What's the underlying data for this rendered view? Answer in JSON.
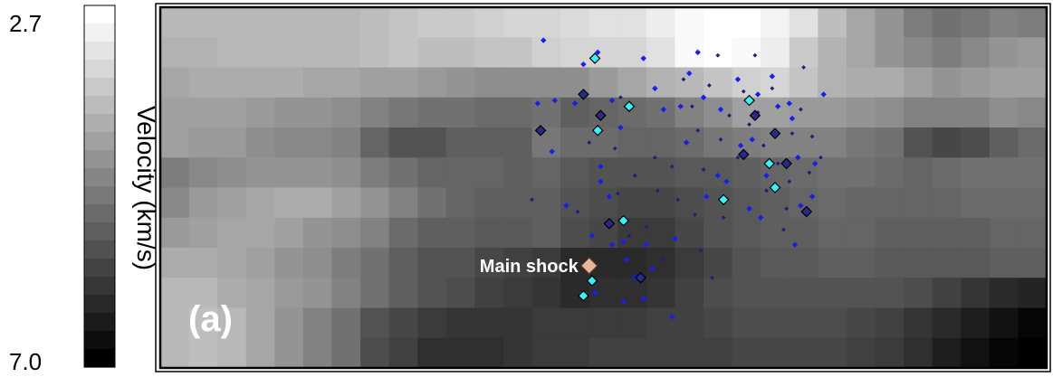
{
  "chart_data": {
    "type": "heatmap",
    "title": "",
    "colorbar": {
      "label": "Velocity (km/s)",
      "top_tick": "2.7",
      "bottom_tick": "7.0",
      "range": [
        2.7,
        7.0
      ],
      "steps": 20,
      "colormap": "white-to-black"
    },
    "panel_label": "(a)",
    "grid": {
      "rows": 12,
      "cols": 31,
      "values": [
        [
          3.9,
          3.9,
          3.9,
          3.9,
          3.9,
          3.9,
          3.9,
          3.8,
          3.7,
          3.6,
          3.6,
          3.5,
          3.4,
          3.4,
          3.3,
          3.2,
          3.2,
          3.0,
          2.8,
          2.7,
          2.7,
          2.9,
          3.2,
          3.8,
          4.2,
          4.5,
          4.9,
          5.1,
          5.0,
          4.8,
          4.9
        ],
        [
          4.0,
          4.0,
          3.9,
          3.9,
          3.9,
          3.9,
          3.9,
          3.8,
          3.7,
          3.8,
          3.8,
          3.7,
          3.7,
          3.5,
          3.4,
          3.4,
          3.4,
          3.2,
          2.8,
          2.7,
          2.8,
          3.0,
          3.6,
          4.0,
          4.2,
          4.5,
          4.7,
          4.9,
          4.7,
          4.5,
          4.4
        ],
        [
          4.2,
          4.1,
          4.1,
          4.1,
          4.1,
          4.2,
          4.2,
          4.3,
          4.3,
          4.4,
          4.5,
          4.6,
          4.6,
          4.6,
          4.6,
          4.4,
          4.2,
          4.0,
          3.9,
          3.7,
          3.5,
          3.4,
          3.7,
          4.0,
          4.1,
          4.1,
          4.3,
          4.5,
          4.4,
          4.3,
          4.3
        ],
        [
          4.3,
          4.3,
          4.3,
          4.4,
          4.5,
          4.5,
          4.6,
          4.8,
          5.0,
          5.1,
          5.1,
          5.2,
          5.2,
          5.1,
          5.4,
          5.3,
          5.2,
          5.1,
          4.8,
          4.6,
          4.3,
          4.3,
          4.4,
          4.4,
          4.5,
          4.6,
          4.8,
          4.8,
          4.8,
          4.6,
          4.7
        ],
        [
          4.3,
          4.4,
          4.4,
          4.6,
          4.7,
          4.7,
          4.8,
          5.3,
          5.6,
          5.6,
          5.4,
          5.4,
          5.4,
          5.0,
          5.2,
          5.2,
          5.3,
          5.3,
          5.2,
          5.0,
          4.9,
          4.8,
          4.8,
          4.8,
          5.0,
          5.1,
          5.6,
          5.8,
          5.7,
          5.4,
          5.2
        ],
        [
          4.9,
          4.7,
          4.6,
          4.5,
          4.5,
          4.5,
          4.6,
          4.9,
          5.1,
          5.3,
          5.3,
          5.3,
          5.4,
          5.3,
          5.5,
          5.6,
          5.6,
          5.6,
          5.5,
          5.5,
          5.4,
          5.3,
          5.2,
          5.1,
          5.1,
          5.2,
          5.3,
          5.2,
          5.1,
          5.1,
          5.1
        ],
        [
          4.7,
          4.4,
          4.3,
          4.2,
          4.1,
          4.1,
          4.3,
          4.5,
          4.8,
          5.1,
          5.3,
          5.4,
          5.4,
          5.4,
          5.6,
          5.7,
          5.8,
          5.8,
          5.7,
          5.6,
          5.5,
          5.4,
          5.3,
          5.2,
          5.3,
          5.3,
          5.3,
          5.3,
          5.2,
          5.2,
          5.2
        ],
        [
          4.4,
          4.3,
          4.2,
          4.2,
          4.3,
          4.5,
          4.6,
          4.8,
          5.2,
          5.4,
          5.4,
          5.5,
          5.5,
          5.4,
          5.7,
          5.8,
          6.0,
          6.0,
          5.8,
          5.6,
          5.5,
          5.4,
          5.4,
          5.3,
          5.3,
          5.4,
          5.4,
          5.4,
          5.4,
          5.3,
          5.3
        ],
        [
          4.1,
          4.1,
          4.2,
          4.3,
          4.5,
          4.6,
          4.9,
          5.1,
          5.4,
          5.6,
          5.6,
          5.8,
          5.9,
          6.0,
          6.3,
          6.3,
          6.3,
          6.2,
          6.0,
          5.8,
          5.6,
          5.5,
          5.5,
          5.4,
          5.4,
          5.5,
          5.5,
          5.5,
          5.5,
          5.4,
          5.4
        ],
        [
          3.9,
          3.9,
          4.1,
          4.2,
          4.4,
          4.5,
          4.8,
          5.1,
          5.4,
          5.6,
          5.7,
          5.9,
          6.0,
          6.1,
          6.3,
          6.2,
          6.2,
          6.1,
          5.9,
          5.7,
          5.6,
          5.6,
          5.6,
          5.6,
          5.6,
          5.6,
          5.7,
          5.9,
          6.1,
          6.3,
          6.4
        ],
        [
          3.9,
          3.8,
          3.9,
          4.2,
          4.5,
          4.8,
          5.1,
          5.6,
          5.8,
          6.0,
          6.1,
          6.1,
          6.1,
          6.0,
          6.0,
          6.0,
          6.0,
          5.9,
          5.9,
          5.8,
          5.7,
          5.7,
          5.7,
          5.7,
          5.8,
          5.9,
          6.1,
          6.3,
          6.5,
          6.7,
          6.9
        ],
        [
          3.9,
          3.8,
          3.9,
          4.2,
          4.5,
          4.8,
          5.1,
          5.7,
          5.9,
          6.2,
          6.2,
          6.2,
          6.1,
          6.0,
          6.0,
          5.9,
          5.9,
          5.9,
          5.9,
          5.9,
          5.8,
          5.8,
          5.8,
          5.8,
          5.9,
          6.0,
          6.2,
          6.5,
          6.7,
          6.9,
          7.0
        ]
      ]
    },
    "events": {
      "small_dark": [
        [
          18.3,
          2.4
        ],
        [
          19.2,
          2.6
        ],
        [
          20.4,
          2.8
        ],
        [
          21.4,
          2.7
        ],
        [
          22.4,
          3.4
        ],
        [
          19.9,
          3.6
        ],
        [
          20.6,
          3.9
        ],
        [
          22.1,
          4.2
        ],
        [
          18.8,
          4.1
        ],
        [
          19.6,
          4.4
        ],
        [
          21.1,
          4.6
        ],
        [
          22.8,
          4.3
        ],
        [
          20.2,
          5.0
        ],
        [
          21.6,
          5.2
        ],
        [
          19.0,
          5.4
        ],
        [
          17.9,
          5.3
        ],
        [
          16.6,
          5.6
        ],
        [
          17.3,
          5.0
        ],
        [
          15.9,
          4.7
        ],
        [
          22.0,
          5.8
        ],
        [
          21.2,
          6.1
        ],
        [
          18.1,
          6.4
        ],
        [
          17.0,
          7.3
        ],
        [
          19.7,
          7.0
        ],
        [
          18.7,
          6.9
        ],
        [
          21.9,
          6.7
        ],
        [
          22.5,
          2.0
        ],
        [
          20.8,
          1.6
        ],
        [
          19.5,
          1.6
        ],
        [
          16.1,
          3.0
        ],
        [
          15.0,
          4.5
        ],
        [
          16.0,
          6.2
        ],
        [
          17.6,
          8.4
        ],
        [
          19.3,
          9.0
        ],
        [
          18.6,
          3.3
        ],
        [
          20.9,
          3.5
        ],
        [
          22.7,
          5.5
        ],
        [
          23.1,
          5.0
        ],
        [
          13.0,
          6.4
        ],
        [
          14.6,
          6.8
        ],
        [
          16.4,
          7.6
        ],
        [
          18.9,
          8.1
        ],
        [
          17.4,
          6.1
        ],
        [
          21.8,
          7.4
        ]
      ],
      "small_blue": [
        [
          13.4,
          1.1
        ],
        [
          14.8,
          1.9
        ],
        [
          15.3,
          1.5
        ],
        [
          16.9,
          1.7
        ],
        [
          17.3,
          2.7
        ],
        [
          18.5,
          2.2
        ],
        [
          18.8,
          1.5
        ],
        [
          19.0,
          3.0
        ],
        [
          18.2,
          3.3
        ],
        [
          17.6,
          3.4
        ],
        [
          15.8,
          3.1
        ],
        [
          14.5,
          3.2
        ],
        [
          13.8,
          3.1
        ],
        [
          13.2,
          3.2
        ],
        [
          13.7,
          4.8
        ],
        [
          15.4,
          5.3
        ],
        [
          15.7,
          6.3
        ],
        [
          15.6,
          7.2
        ],
        [
          15.1,
          7.6
        ],
        [
          15.8,
          7.9
        ],
        [
          16.3,
          8.4
        ],
        [
          16.6,
          9.0
        ],
        [
          16.9,
          9.7
        ],
        [
          16.2,
          7.8
        ],
        [
          17.0,
          7.9
        ],
        [
          18.0,
          7.7
        ],
        [
          19.5,
          5.6
        ],
        [
          20.3,
          4.6
        ],
        [
          20.7,
          4.4
        ],
        [
          21.6,
          3.3
        ],
        [
          22.1,
          3.7
        ],
        [
          22.3,
          5.0
        ],
        [
          22.9,
          5.2
        ],
        [
          22.8,
          6.3
        ],
        [
          22.4,
          6.6
        ],
        [
          20.6,
          6.7
        ],
        [
          19.8,
          5.8
        ],
        [
          19.1,
          6.3
        ],
        [
          18.4,
          4.5
        ],
        [
          19.6,
          3.4
        ],
        [
          20.9,
          2.9
        ],
        [
          21.4,
          2.3
        ],
        [
          22.0,
          3.2
        ],
        [
          16.1,
          4.0
        ],
        [
          15.4,
          5.8
        ],
        [
          14.2,
          6.6
        ],
        [
          17.9,
          10.3
        ],
        [
          16.2,
          9.8
        ],
        [
          15.2,
          9.5
        ],
        [
          21.0,
          7.0
        ],
        [
          22.2,
          7.9
        ],
        [
          23.2,
          2.9
        ],
        [
          20.2,
          2.4
        ],
        [
          21.2,
          5.6
        ],
        [
          17.2,
          8.7
        ]
      ],
      "large_dark": [
        [
          14.8,
          2.9
        ],
        [
          13.3,
          4.1
        ],
        [
          15.4,
          3.6
        ],
        [
          21.5,
          4.2
        ],
        [
          20.8,
          3.6
        ],
        [
          21.9,
          5.2
        ],
        [
          22.6,
          6.8
        ],
        [
          15.7,
          7.2
        ],
        [
          20.4,
          4.9
        ],
        [
          16.8,
          9.0
        ]
      ],
      "large_cyan": [
        [
          15.2,
          1.7
        ],
        [
          16.4,
          3.3
        ],
        [
          15.3,
          4.1
        ],
        [
          14.8,
          9.6
        ],
        [
          15.1,
          9.1
        ],
        [
          16.2,
          7.1
        ],
        [
          19.7,
          6.4
        ],
        [
          21.3,
          5.2
        ],
        [
          21.5,
          6.0
        ],
        [
          20.6,
          3.1
        ]
      ],
      "main_shock": {
        "label": "Main shock",
        "pos": [
          15.0,
          8.6
        ]
      }
    }
  }
}
